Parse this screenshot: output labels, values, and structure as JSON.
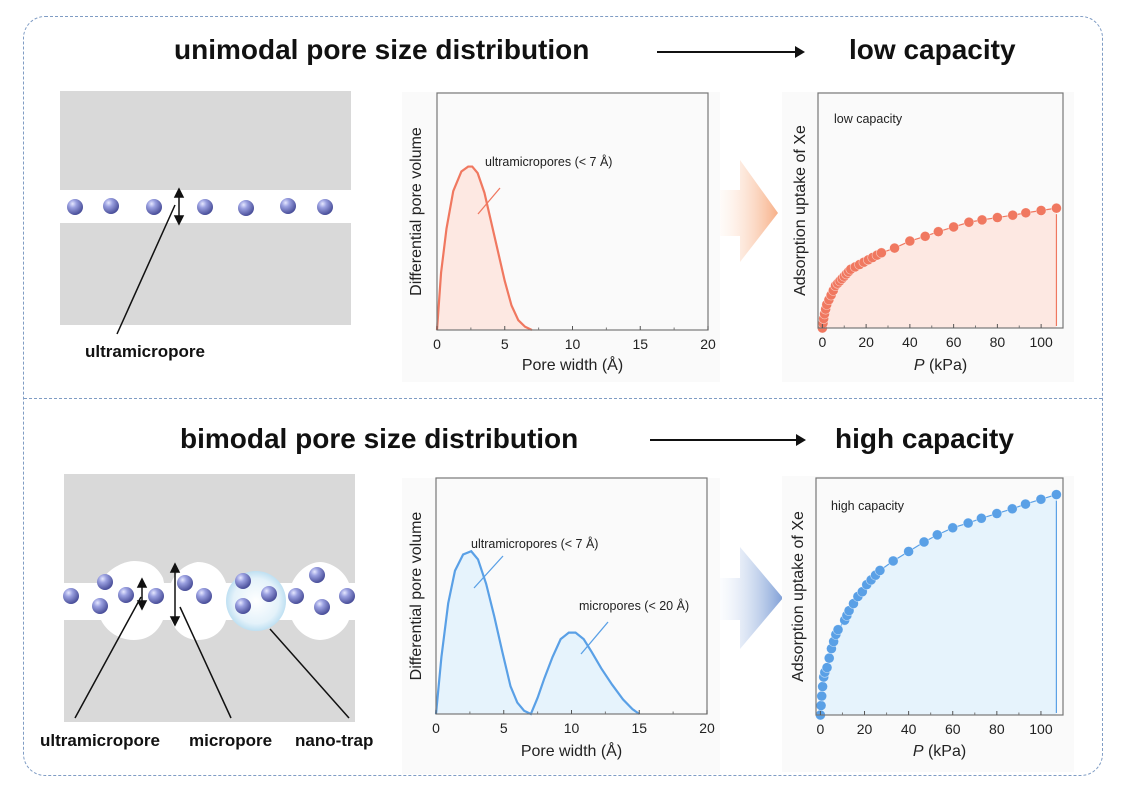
{
  "top": {
    "heading_left": "unimodal pore size distribution",
    "heading_right": "low capacity",
    "schematic_label": "ultramicropore"
  },
  "bottom": {
    "heading_left": "bimodal pore size distribution",
    "heading_right": "high capacity",
    "schematic_labels": [
      "ultramicropore",
      "micropore",
      "nano-trap"
    ]
  },
  "colors": {
    "low": "#f07860",
    "low_fill": "#fde8e2",
    "high": "#5aa0e6",
    "high_fill": "#e6f3fc",
    "sphere": "#8a90d8",
    "wall": "#d9d9d9",
    "frame": "#7f9cc4"
  },
  "chart_data": [
    {
      "id": "psd-unimodal",
      "type": "area",
      "title": "",
      "xlabel": "Pore width (Å)",
      "ylabel": "Differential pore volume",
      "xlim": [
        0,
        20
      ],
      "xticks": [
        0,
        5,
        10,
        15,
        20
      ],
      "ylim": [
        0,
        1.45
      ],
      "annotations": [
        "ultramicropores (< 7 Å)"
      ],
      "series": [
        {
          "name": "unimodal",
          "x": [
            0,
            0.3,
            0.7,
            1.2,
            1.8,
            2.3,
            2.6,
            3.0,
            3.5,
            4.0,
            4.5,
            5.0,
            5.5,
            6.0,
            6.5,
            7.0
          ],
          "y": [
            0,
            0.35,
            0.62,
            0.85,
            0.97,
            1.0,
            1.0,
            0.96,
            0.84,
            0.66,
            0.48,
            0.3,
            0.15,
            0.06,
            0.02,
            0
          ]
        }
      ]
    },
    {
      "id": "isotherm-low",
      "type": "scatter",
      "xlabel": "P (kPa)",
      "ylabel": "Adsorption uptake of Xe",
      "xlim": [
        -2,
        110
      ],
      "xticks": [
        0,
        20,
        40,
        60,
        80,
        100
      ],
      "ylim": [
        0,
        1
      ],
      "annotations": [
        "low capacity"
      ],
      "series": [
        {
          "name": "low capacity",
          "x": [
            0,
            0.3,
            0.6,
            1,
            1.5,
            2,
            3,
            4,
            5,
            6,
            7,
            8,
            9,
            10,
            11,
            12,
            13,
            15,
            17,
            19,
            21,
            23,
            25,
            27,
            33,
            40,
            47,
            53,
            60,
            67,
            73,
            80,
            87,
            93,
            100,
            107
          ],
          "y": [
            0,
            0.02,
            0.04,
            0.06,
            0.08,
            0.1,
            0.12,
            0.14,
            0.16,
            0.18,
            0.19,
            0.2,
            0.21,
            0.22,
            0.23,
            0.24,
            0.25,
            0.26,
            0.27,
            0.28,
            0.29,
            0.3,
            0.31,
            0.32,
            0.34,
            0.37,
            0.39,
            0.41,
            0.43,
            0.45,
            0.46,
            0.47,
            0.48,
            0.49,
            0.5,
            0.51
          ]
        }
      ]
    },
    {
      "id": "psd-bimodal",
      "type": "area",
      "xlabel": "Pore width (Å)",
      "ylabel": "Differential pore volume",
      "xlim": [
        0,
        20
      ],
      "xticks": [
        0,
        5,
        10,
        15,
        20
      ],
      "ylim": [
        0,
        1.45
      ],
      "annotations": [
        "ultramicropores (< 7 Å)",
        "micropores (< 20 Å)"
      ],
      "series": [
        {
          "name": "bimodal",
          "x": [
            0,
            0.4,
            0.9,
            1.4,
            2.0,
            2.6,
            3.1,
            3.7,
            4.3,
            4.9,
            5.5,
            6.0,
            6.5,
            7.0,
            7.5,
            8.0,
            8.6,
            9.2,
            9.8,
            10.3,
            10.9,
            11.5,
            12.2,
            13.0,
            13.8,
            14.5,
            15.0
          ],
          "y": [
            0,
            0.35,
            0.68,
            0.88,
            0.98,
            1.0,
            0.95,
            0.8,
            0.6,
            0.38,
            0.17,
            0.07,
            0.02,
            0,
            0.1,
            0.22,
            0.35,
            0.46,
            0.5,
            0.5,
            0.46,
            0.38,
            0.28,
            0.18,
            0.09,
            0.03,
            0
          ]
        }
      ]
    },
    {
      "id": "isotherm-high",
      "type": "scatter",
      "xlabel": "P (kPa)",
      "ylabel": "Adsorption uptake of Xe",
      "xlim": [
        -2,
        110
      ],
      "xticks": [
        0,
        20,
        40,
        60,
        80,
        100
      ],
      "ylim": [
        0,
        1
      ],
      "annotations": [
        "high capacity"
      ],
      "series": [
        {
          "name": "high capacity",
          "x": [
            0,
            0.3,
            0.6,
            1,
            1.5,
            2,
            3,
            4,
            5,
            6,
            7,
            8,
            11,
            12,
            13,
            15,
            17,
            19,
            21,
            23,
            25,
            27,
            33,
            40,
            47,
            53,
            60,
            67,
            73,
            80,
            87,
            93,
            100,
            107
          ],
          "y": [
            0,
            0.04,
            0.08,
            0.12,
            0.16,
            0.18,
            0.2,
            0.24,
            0.28,
            0.31,
            0.34,
            0.36,
            0.4,
            0.42,
            0.44,
            0.47,
            0.5,
            0.52,
            0.55,
            0.57,
            0.59,
            0.61,
            0.65,
            0.69,
            0.73,
            0.76,
            0.79,
            0.81,
            0.83,
            0.85,
            0.87,
            0.89,
            0.91,
            0.93
          ]
        }
      ]
    }
  ]
}
